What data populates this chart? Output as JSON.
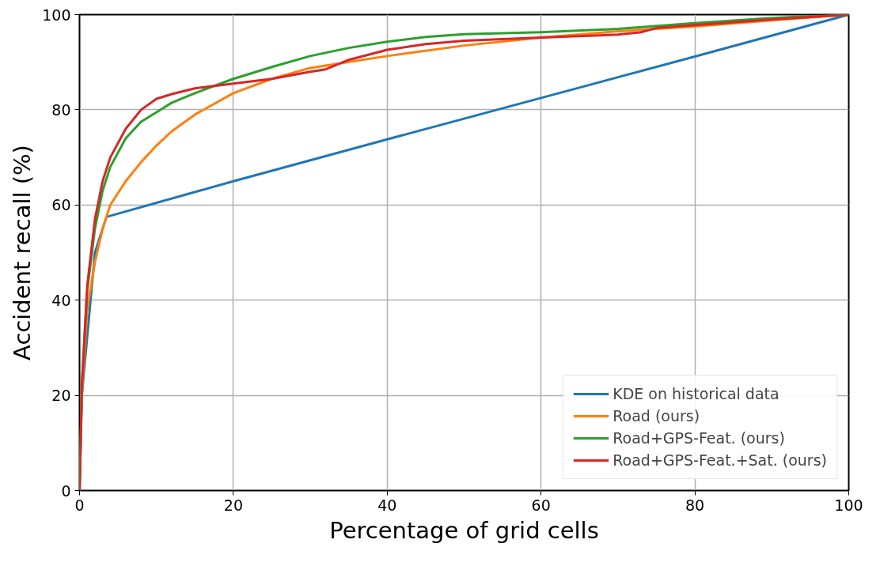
{
  "chart_data": {
    "type": "line",
    "xlabel": "Percentage of grid cells",
    "ylabel": "Accident recall (%)",
    "xlim": [
      0,
      100
    ],
    "ylim": [
      0,
      100
    ],
    "xticks": [
      0,
      20,
      40,
      60,
      80,
      100
    ],
    "yticks": [
      0,
      20,
      40,
      60,
      80,
      100
    ],
    "grid": true,
    "legend": "bottom right",
    "line_style": "solid",
    "series": [
      {
        "name": "KDE on historical data",
        "color": "#1f77b4",
        "x": [
          0,
          0.3,
          2,
          3.5,
          20,
          40,
          60,
          80,
          100
        ],
        "values": [
          0,
          20,
          50,
          57.5,
          65,
          73.8,
          82.5,
          91.2,
          100
        ]
      },
      {
        "name": "Road (ours)",
        "color": "#ff7f0e",
        "x": [
          0,
          0.3,
          1,
          2,
          3,
          4,
          6,
          8,
          10,
          12,
          15,
          20,
          25,
          30,
          40,
          50,
          60,
          70,
          80,
          90,
          100
        ],
        "values": [
          0,
          20,
          38,
          48,
          55,
          60,
          65,
          69,
          72.5,
          75.5,
          79,
          83.5,
          86.5,
          88.8,
          91.3,
          93.5,
          95.2,
          96.5,
          97.5,
          98.8,
          100
        ]
      },
      {
        "name": "Road+GPS-Feat. (ours)",
        "color": "#2ca02c",
        "x": [
          0,
          0.3,
          1,
          2,
          3,
          4,
          6,
          8,
          10,
          12,
          15,
          20,
          25,
          30,
          35,
          40,
          45,
          50,
          60,
          70,
          80,
          90,
          100
        ],
        "values": [
          0,
          22,
          42,
          55,
          63,
          68,
          74,
          77.5,
          79.5,
          81.5,
          83.5,
          86.5,
          89,
          91.3,
          93,
          94.3,
          95.3,
          95.9,
          96.3,
          97,
          98.2,
          99.3,
          100
        ]
      },
      {
        "name": "Road+GPS-Feat.+Sat. (ours)",
        "color": "#d62728",
        "x": [
          0,
          0.3,
          1,
          2,
          3,
          4,
          6,
          8,
          10,
          12,
          15,
          20,
          25,
          30,
          32,
          35,
          40,
          45,
          50,
          60,
          70,
          73,
          75,
          80,
          90,
          100
        ],
        "values": [
          0,
          22,
          43,
          57,
          65,
          70,
          76,
          80,
          82.3,
          83.3,
          84.5,
          85.5,
          86.5,
          88,
          88.5,
          90.5,
          92.6,
          93.8,
          94.5,
          95.2,
          95.8,
          96.3,
          97.2,
          97.8,
          99,
          100
        ]
      }
    ]
  }
}
